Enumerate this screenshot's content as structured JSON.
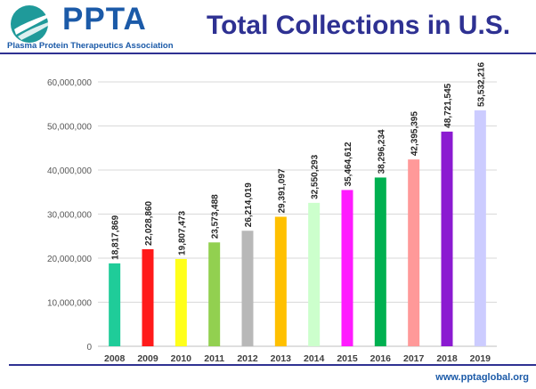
{
  "header": {
    "logo_text": "PPTA",
    "logo_subtitle": "Plasma Protein Therapeutics Association",
    "title": "Total Collections in U.S."
  },
  "footer": {
    "url": "www.pptaglobal.org"
  },
  "colors": {
    "brand_blue": "#1b5aa8",
    "title_navy": "#2e3192",
    "logo_teal": "#1f9a9a"
  },
  "chart_data": {
    "type": "bar",
    "title": "Total Collections in U.S.",
    "xlabel": "",
    "ylabel": "",
    "ylim": [
      0,
      60000000
    ],
    "yticks": [
      "0",
      "10,000,000",
      "20,000,000",
      "30,000,000",
      "40,000,000",
      "50,000,000",
      "60,000,000"
    ],
    "grid": true,
    "categories": [
      "2008",
      "2009",
      "2010",
      "2011",
      "2012",
      "2013",
      "2014",
      "2015",
      "2016",
      "2017",
      "2018",
      "2019"
    ],
    "values": [
      18817869,
      22028860,
      19807473,
      23573488,
      26214019,
      29391097,
      32550293,
      35464612,
      38296234,
      42395395,
      48721545,
      53532216
    ],
    "labels": [
      "18,817,869",
      "22,028,860",
      "19,807,473",
      "23,573,488",
      "26,214,019",
      "29,391,097",
      "32,550,293",
      "35,464,612",
      "38,296,234",
      "42,395,395",
      "48,721,545",
      "53,532,216"
    ],
    "colors": [
      "#1fcc99",
      "#ff1a1a",
      "#ffff1a",
      "#92d050",
      "#b8b8b8",
      "#ffc000",
      "#ccffcc",
      "#ff1aff",
      "#00b050",
      "#ff9999",
      "#8b1ad1",
      "#ccccff"
    ]
  }
}
